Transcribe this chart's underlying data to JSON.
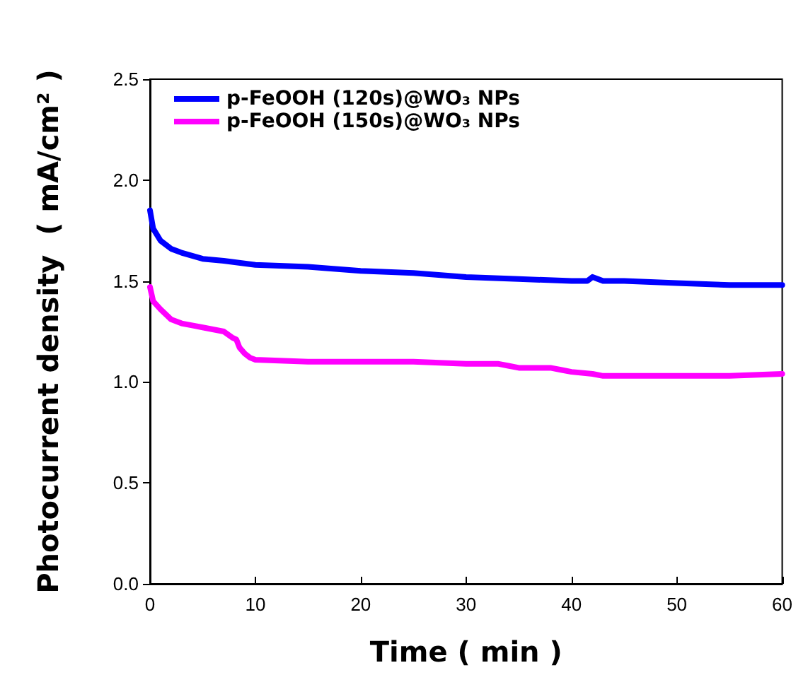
{
  "chart_data": {
    "type": "line",
    "xlabel": "Time ( min )",
    "ylabel": "Photocurrent density  ( mA/cm² )",
    "xlim": [
      0,
      60
    ],
    "xticks": [
      0,
      10,
      20,
      30,
      40,
      50,
      60
    ],
    "ylim": [
      0,
      2.5
    ],
    "yticks": [
      {
        "value": 0,
        "label": "0.0"
      },
      0.5,
      {
        "value": 1,
        "label": "1.0"
      },
      1.5,
      {
        "value": 2,
        "label": "2.0"
      },
      2.5
    ],
    "legend": "top left",
    "line_style": "solid",
    "marker": "none",
    "series": [
      {
        "name": "p-FeOOH (120s)@WO₃ NPs",
        "color": "#0000ff",
        "x": [
          0,
          0.3,
          1,
          2,
          3,
          5,
          7,
          10,
          15,
          20,
          25,
          30,
          35,
          40,
          41.5,
          42,
          42.5,
          43,
          45,
          50,
          55,
          60
        ],
        "values": [
          1.85,
          1.76,
          1.7,
          1.66,
          1.64,
          1.61,
          1.6,
          1.58,
          1.57,
          1.55,
          1.54,
          1.52,
          1.51,
          1.5,
          1.5,
          1.52,
          1.51,
          1.5,
          1.5,
          1.49,
          1.48,
          1.48
        ]
      },
      {
        "name": "p-FeOOH (150s)@WO₃ NPs",
        "color": "#ff00ff",
        "x": [
          0,
          0.3,
          1,
          2,
          3,
          4,
          5,
          7,
          7.8,
          8.2,
          8.5,
          9,
          9.5,
          10,
          15,
          20,
          25,
          30,
          33,
          34,
          35,
          38,
          39,
          40,
          42,
          43,
          45,
          50,
          55,
          60
        ],
        "values": [
          1.47,
          1.4,
          1.36,
          1.31,
          1.29,
          1.28,
          1.27,
          1.25,
          1.22,
          1.21,
          1.17,
          1.14,
          1.12,
          1.11,
          1.1,
          1.1,
          1.1,
          1.09,
          1.09,
          1.08,
          1.07,
          1.07,
          1.06,
          1.05,
          1.04,
          1.03,
          1.03,
          1.03,
          1.03,
          1.04
        ]
      }
    ]
  }
}
